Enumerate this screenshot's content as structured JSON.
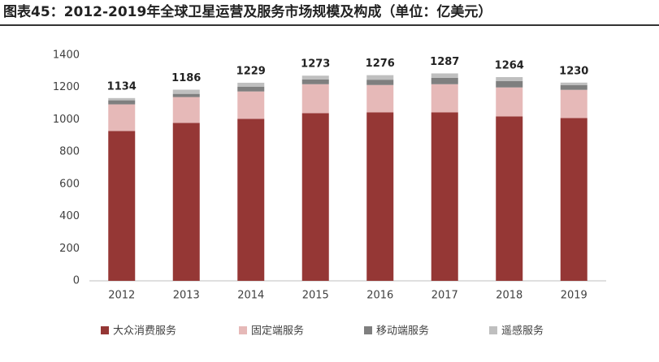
{
  "chart_data": {
    "type": "stacked_bar",
    "title": "图表45：2012-2019年全球卫星运营及服务市场规模及构成（单位：亿美元）",
    "categories": [
      "2012",
      "2013",
      "2014",
      "2015",
      "2016",
      "2017",
      "2018",
      "2019"
    ],
    "series": [
      {
        "name": "大众消费服务",
        "color": "#953735",
        "values": [
          930,
          980,
          1005,
          1040,
          1045,
          1045,
          1020,
          1010
        ]
      },
      {
        "name": "固定端服务",
        "color": "#e6b9b8",
        "values": [
          165,
          160,
          170,
          180,
          170,
          175,
          180,
          175
        ]
      },
      {
        "name": "移动端服务",
        "color": "#7f7f7f",
        "values": [
          25,
          20,
          30,
          30,
          33,
          40,
          40,
          30
        ]
      },
      {
        "name": "遥感服务",
        "color": "#bfbfbf",
        "values": [
          14,
          26,
          24,
          23,
          28,
          27,
          24,
          15
        ]
      }
    ],
    "totals": [
      1134,
      1186,
      1229,
      1273,
      1276,
      1287,
      1264,
      1230
    ],
    "ylim": [
      0,
      1400
    ],
    "yticks": [
      0,
      200,
      400,
      600,
      800,
      1000,
      1200,
      1400
    ],
    "legend": "bottom"
  }
}
